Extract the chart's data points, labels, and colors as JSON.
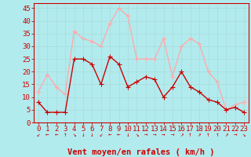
{
  "x": [
    0,
    1,
    2,
    3,
    4,
    5,
    6,
    7,
    8,
    9,
    10,
    11,
    12,
    13,
    14,
    15,
    16,
    17,
    18,
    19,
    20,
    21,
    22,
    23
  ],
  "vent_moyen": [
    8,
    4,
    4,
    4,
    25,
    25,
    23,
    15,
    26,
    23,
    14,
    16,
    18,
    17,
    10,
    14,
    20,
    14,
    12,
    9,
    8,
    5,
    6,
    4
  ],
  "en_rafales": [
    12,
    19,
    14,
    11,
    36,
    33,
    32,
    30,
    39,
    45,
    42,
    25,
    25,
    25,
    33,
    18,
    30,
    33,
    31,
    20,
    16,
    5,
    7,
    8
  ],
  "color_moyen": "#cc0000",
  "color_rafales": "#ffaaaa",
  "bg_color": "#b2ebee",
  "grid_color": "#aadddd",
  "xlabel": "Vent moyen/en rafales ( km/h )",
  "ylabel_ticks": [
    0,
    5,
    10,
    15,
    20,
    25,
    30,
    35,
    40,
    45
  ],
  "ylim": [
    0,
    47
  ],
  "xlim": [
    -0.5,
    23.5
  ],
  "xlabel_fontsize": 7.5,
  "tick_fontsize": 6.5,
  "marker_size": 2.5,
  "line_width": 1.0,
  "wind_symbols": [
    "↙",
    "←",
    "←",
    "↑",
    "↘",
    "↓",
    "↓",
    "↙",
    "←",
    "←",
    "↓",
    "↘",
    "→",
    "→",
    "→",
    "→",
    "↗",
    "↑",
    "↗",
    "↑",
    "↑",
    "↗",
    "→",
    "↘"
  ]
}
